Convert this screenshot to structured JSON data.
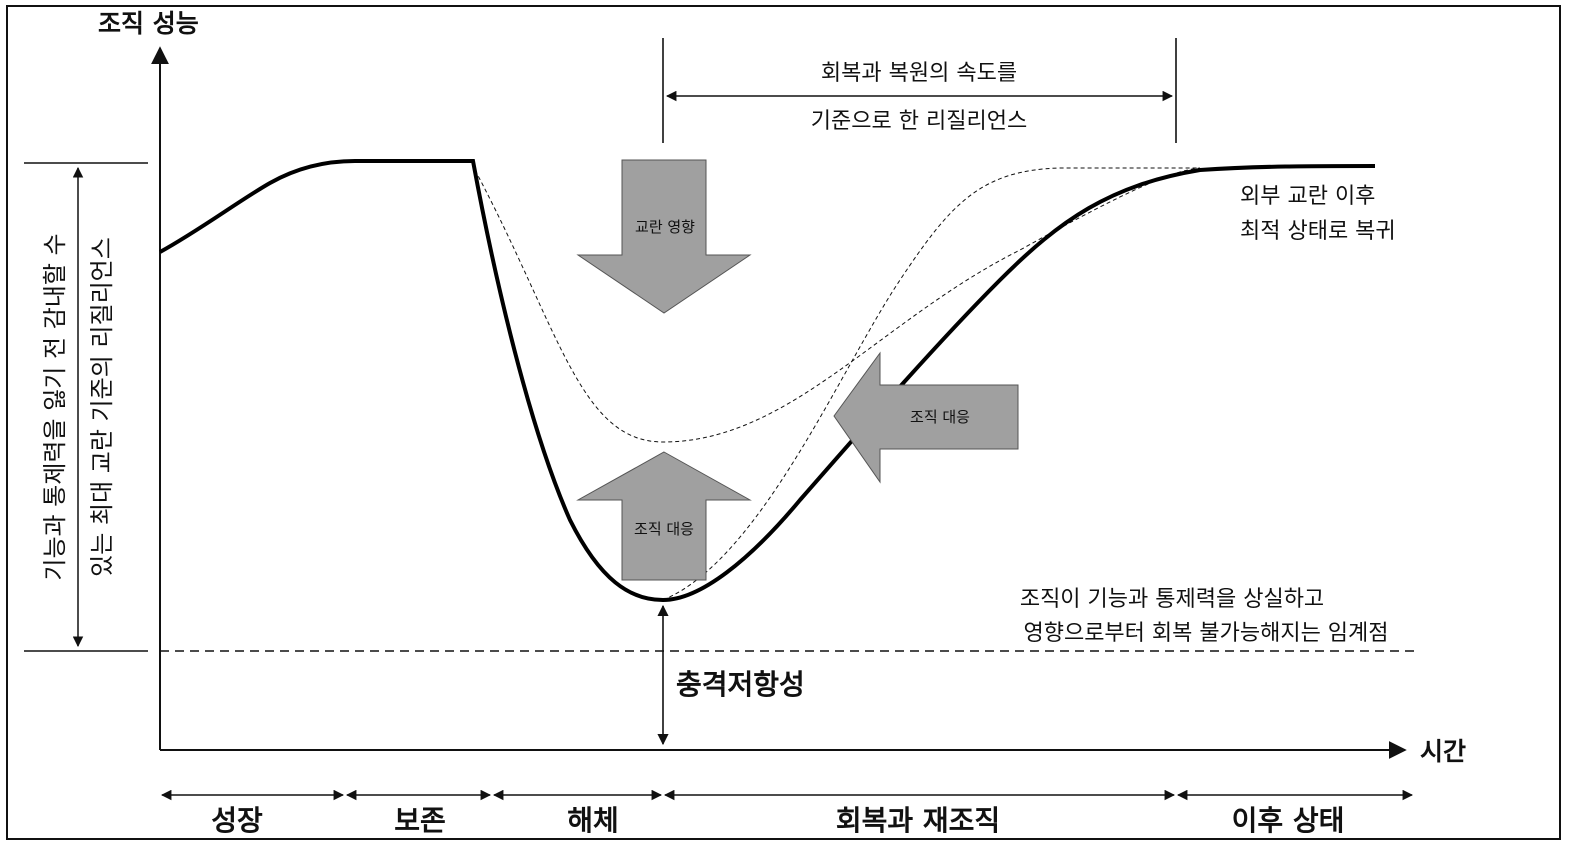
{
  "axes": {
    "y_label": "조직 성능",
    "x_label": "시간"
  },
  "vertical_label": {
    "line1": "기능과 통제력을 잃기 전 감내할 수",
    "line2": "있는 최대 교란 기준의 리질리언스"
  },
  "top_bracket": {
    "line1": "회복과 복원의 속도를",
    "line2": "기준으로 한 리질리언스"
  },
  "arrows": {
    "disturbance": "교란 영향",
    "response_up": "조직 대응",
    "response_left": "조직 대응"
  },
  "right_note": {
    "line1": "외부 교란 이후",
    "line2": "최적 상태로 복귀"
  },
  "threshold_note": {
    "line1": "조직이 기능과 통제력을 상실하고",
    "line2": "영향으로부터 회복 불가능해지는 임계점"
  },
  "shock_resistance": "충격저항성",
  "phases": [
    "성장",
    "보존",
    "해체",
    "회복과 재조직",
    "이후 상태"
  ]
}
